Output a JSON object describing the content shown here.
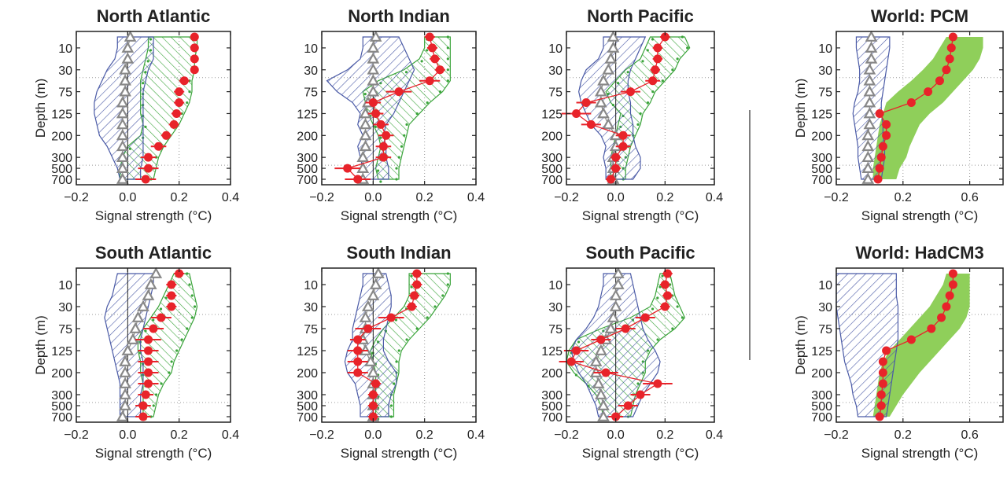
{
  "figure": {
    "divider_color": "#555555",
    "colors": {
      "control": "#4a5aa6",
      "model": "#3aa43a",
      "model_fill": "#8fcf5a",
      "obs": "#e8232a",
      "triangle": "#888888"
    }
  },
  "chart_data": [
    {
      "id": "north-atlantic",
      "type": "profile",
      "title": "North Atlantic",
      "xlabel": "Signal strength (°C)",
      "ylabel": "Depth (m)",
      "xlim": [
        -0.2,
        0.4
      ],
      "xticks": [
        "−0.2",
        "0.0",
        "0.2",
        "0.4"
      ],
      "xtick_values": [
        -0.2,
        0.0,
        0.2,
        0.4
      ],
      "yticks": [
        "10",
        "30",
        "75",
        "125",
        "200",
        "300",
        "500",
        "700"
      ],
      "control_band": {
        "left": [
          -0.04,
          -0.04,
          -0.05,
          -0.08,
          -0.1,
          -0.12,
          -0.13,
          -0.13,
          -0.12,
          -0.11,
          -0.08,
          -0.06,
          -0.04,
          -0.03
        ],
        "right": [
          0.1,
          0.1,
          0.1,
          0.08,
          0.07,
          0.06,
          0.06,
          0.06,
          0.06,
          0.06,
          0.06,
          0.06,
          0.05,
          0.05
        ]
      },
      "model_band": {
        "style": "hatch",
        "left": [
          0.08,
          0.08,
          0.07,
          0.06,
          0.05,
          0.05,
          0.05,
          0.05,
          0.06,
          0.05,
          0.0,
          -0.02,
          -0.03,
          -0.03
        ],
        "right": [
          0.27,
          0.27,
          0.26,
          0.26,
          0.25,
          0.25,
          0.24,
          0.22,
          0.2,
          0.17,
          0.14,
          0.12,
          0.11,
          0.1
        ]
      },
      "triangles": [
        0.01,
        0.0,
        0.0,
        -0.01,
        -0.01,
        -0.01,
        -0.02,
        -0.02,
        -0.02,
        -0.02,
        -0.02,
        -0.02,
        -0.02,
        -0.02
      ],
      "obs": {
        "values": [
          0.26,
          0.26,
          0.26,
          0.26,
          0.22,
          0.2,
          0.2,
          0.19,
          0.18,
          0.15,
          0.12,
          0.08,
          0.08,
          0.07
        ],
        "err": [
          0.01,
          0.01,
          0.01,
          0.01,
          0.02,
          0.02,
          0.02,
          0.02,
          0.02,
          0.02,
          0.03,
          0.03,
          0.04,
          0.04
        ],
        "connected": false
      }
    },
    {
      "id": "north-indian",
      "type": "profile",
      "title": "North Indian",
      "xlabel": "Signal strength (°C)",
      "ylabel": "",
      "xlim": [
        -0.2,
        0.4
      ],
      "xticks": [
        "−0.2",
        "0.0",
        "0.2",
        "0.4"
      ],
      "xtick_values": [
        -0.2,
        0.0,
        0.2,
        0.4
      ],
      "yticks": [
        "10",
        "30",
        "75",
        "125",
        "200",
        "300",
        "500",
        "700"
      ],
      "control_band": {
        "left": [
          -0.04,
          -0.04,
          -0.05,
          -0.1,
          -0.18,
          -0.14,
          -0.08,
          -0.05,
          -0.06,
          -0.04,
          -0.06,
          -0.05,
          -0.04,
          -0.04
        ],
        "right": [
          0.1,
          0.12,
          0.14,
          0.16,
          0.14,
          0.12,
          0.1,
          0.08,
          0.05,
          0.04,
          0.05,
          0.05,
          0.06,
          0.06
        ]
      },
      "model_band": {
        "style": "hatch",
        "left": [
          0.2,
          0.2,
          0.18,
          0.12,
          0.02,
          -0.04,
          -0.03,
          -0.02,
          0.0,
          0.02,
          0.03,
          0.02,
          0.01,
          0.02
        ],
        "right": [
          0.3,
          0.3,
          0.3,
          0.3,
          0.3,
          0.27,
          0.22,
          0.18,
          0.14,
          0.13,
          0.12,
          0.11,
          0.1,
          0.1
        ]
      },
      "triangles": [
        0.01,
        0.0,
        0.0,
        0.0,
        0.0,
        0.0,
        -0.02,
        -0.03,
        -0.03,
        -0.03,
        -0.03,
        -0.04,
        -0.04,
        -0.04
      ],
      "obs": {
        "values": [
          0.22,
          0.23,
          0.24,
          0.26,
          0.22,
          0.1,
          0.0,
          0.01,
          0.03,
          0.05,
          0.04,
          0.04,
          -0.1,
          -0.06
        ],
        "err": [
          0.02,
          0.02,
          0.02,
          0.02,
          0.04,
          0.05,
          0.03,
          0.03,
          0.03,
          0.03,
          0.03,
          0.03,
          0.05,
          0.05
        ],
        "connected": true
      }
    },
    {
      "id": "north-pacific",
      "type": "profile",
      "title": "North Pacific",
      "xlabel": "Signal strength (°C)",
      "ylabel": "",
      "xlim": [
        -0.2,
        0.4
      ],
      "xticks": [
        "−0.2",
        "0.0",
        "0.2",
        "0.4"
      ],
      "xtick_values": [
        -0.2,
        0.0,
        0.2,
        0.4
      ],
      "yticks": [
        "10",
        "30",
        "75",
        "125",
        "200",
        "300",
        "500",
        "700"
      ],
      "control_band": {
        "left": [
          -0.05,
          -0.05,
          -0.07,
          -0.12,
          -0.14,
          -0.15,
          -0.14,
          -0.12,
          -0.1,
          -0.06,
          -0.04,
          -0.05,
          -0.04,
          -0.04
        ],
        "right": [
          0.12,
          0.1,
          0.08,
          0.06,
          0.05,
          0.05,
          0.06,
          0.06,
          0.07,
          0.07,
          0.08,
          0.1,
          0.1,
          0.07
        ]
      },
      "model_band": {
        "style": "hatch",
        "left": [
          0.14,
          0.12,
          0.1,
          0.04,
          0.0,
          -0.04,
          -0.02,
          0.02,
          0.01,
          0.0,
          -0.01,
          -0.02,
          -0.02,
          -0.02
        ],
        "right": [
          0.28,
          0.3,
          0.26,
          0.24,
          0.2,
          0.16,
          0.14,
          0.11,
          0.1,
          0.08,
          0.06,
          0.05,
          0.04,
          0.04
        ]
      },
      "triangles": [
        -0.01,
        -0.01,
        -0.02,
        -0.03,
        -0.05,
        -0.06,
        -0.06,
        -0.05,
        -0.03,
        0.0,
        0.0,
        -0.01,
        -0.01,
        -0.01
      ],
      "obs": {
        "values": [
          0.2,
          0.17,
          0.17,
          0.16,
          0.15,
          0.06,
          -0.12,
          -0.16,
          -0.1,
          0.03,
          0.03,
          0.0,
          0.0,
          -0.02
        ],
        "err": [
          0.02,
          0.02,
          0.02,
          0.02,
          0.03,
          0.04,
          0.04,
          0.06,
          0.04,
          0.03,
          0.03,
          0.02,
          0.02,
          0.02
        ],
        "connected": true
      }
    },
    {
      "id": "world-pcm",
      "type": "profile",
      "title": "World: PCM",
      "xlabel": "Signal strength (°C)",
      "ylabel": "Depth (m)",
      "xlim": [
        -0.2,
        0.8
      ],
      "xticks": [
        "−0.2",
        "0.2",
        "0.6"
      ],
      "xtick_values": [
        -0.2,
        0.2,
        0.6
      ],
      "yticks": [
        "10",
        "30",
        "75",
        "125",
        "200",
        "300",
        "500",
        "700"
      ],
      "control_band": {
        "left": [
          -0.08,
          -0.08,
          -0.07,
          -0.06,
          -0.06,
          -0.07,
          -0.09,
          -0.1,
          -0.09,
          -0.08,
          -0.07,
          -0.07,
          -0.06,
          -0.05
        ],
        "right": [
          0.12,
          0.12,
          0.11,
          0.1,
          0.09,
          0.08,
          0.07,
          0.07,
          0.08,
          0.08,
          0.09,
          0.09,
          0.08,
          0.07
        ]
      },
      "model_band": {
        "style": "solid",
        "left": [
          0.46,
          0.42,
          0.38,
          0.32,
          0.25,
          0.17,
          0.1,
          0.08,
          0.06,
          0.05,
          0.04,
          0.03,
          0.02,
          0.02
        ],
        "right": [
          0.68,
          0.68,
          0.66,
          0.62,
          0.56,
          0.5,
          0.44,
          0.36,
          0.3,
          0.27,
          0.24,
          0.22,
          0.18,
          0.16
        ]
      },
      "triangles": [
        0.01,
        0.01,
        0.01,
        0.0,
        0.0,
        0.0,
        0.0,
        0.0,
        0.0,
        -0.01,
        -0.01,
        -0.01,
        -0.01,
        -0.01
      ],
      "obs": {
        "values": [
          0.5,
          0.49,
          0.48,
          0.46,
          0.42,
          0.35,
          0.25,
          0.06,
          0.1,
          0.1,
          0.08,
          0.07,
          0.06,
          0.05
        ],
        "err": [
          0,
          0,
          0,
          0,
          0,
          0,
          0,
          0,
          0,
          0,
          0,
          0,
          0,
          0
        ],
        "connected": true
      }
    },
    {
      "id": "south-atlantic",
      "type": "profile",
      "title": "South Atlantic",
      "xlabel": "Signal strength (°C)",
      "ylabel": "Depth (m)",
      "xlim": [
        -0.2,
        0.4
      ],
      "xticks": [
        "−0.2",
        "0.0",
        "0.2",
        "0.4"
      ],
      "xtick_values": [
        -0.2,
        0.0,
        0.2,
        0.4
      ],
      "yticks": [
        "10",
        "30",
        "75",
        "125",
        "200",
        "300",
        "500",
        "700"
      ],
      "control_band": {
        "left": [
          -0.04,
          -0.05,
          -0.06,
          -0.08,
          -0.09,
          -0.08,
          -0.07,
          -0.06,
          -0.05,
          -0.04,
          -0.03,
          -0.03,
          -0.03,
          -0.03
        ],
        "right": [
          0.1,
          0.1,
          0.09,
          0.08,
          0.07,
          0.06,
          0.05,
          0.05,
          0.06,
          0.06,
          0.06,
          0.05,
          0.05,
          0.05
        ]
      },
      "model_band": {
        "style": "hatch",
        "left": [
          0.18,
          0.16,
          0.14,
          0.12,
          0.09,
          0.06,
          0.04,
          0.04,
          0.05,
          0.05,
          0.06,
          0.06,
          0.06,
          0.06
        ],
        "right": [
          0.24,
          0.25,
          0.26,
          0.27,
          0.26,
          0.24,
          0.22,
          0.2,
          0.18,
          0.17,
          0.14,
          0.12,
          0.11,
          0.1
        ]
      },
      "triangles": [
        0.11,
        0.09,
        0.08,
        0.06,
        0.04,
        0.03,
        0.02,
        0.0,
        -0.01,
        -0.01,
        -0.01,
        -0.01,
        -0.01,
        -0.02
      ],
      "obs": {
        "values": [
          0.2,
          0.17,
          0.17,
          0.17,
          0.13,
          0.1,
          0.08,
          0.08,
          0.08,
          0.08,
          0.08,
          0.07,
          0.06,
          0.06
        ],
        "err": [
          0.02,
          0.02,
          0.02,
          0.02,
          0.04,
          0.04,
          0.05,
          0.04,
          0.04,
          0.04,
          0.04,
          0.03,
          0.03,
          0.03
        ],
        "connected": false
      }
    },
    {
      "id": "south-indian",
      "type": "profile",
      "title": "South Indian",
      "xlabel": "Signal strength (°C)",
      "ylabel": "",
      "xlim": [
        -0.2,
        0.4
      ],
      "xticks": [
        "−0.2",
        "0.0",
        "0.2",
        "0.4"
      ],
      "xtick_values": [
        -0.2,
        0.0,
        0.2,
        0.4
      ],
      "yticks": [
        "10",
        "30",
        "75",
        "125",
        "200",
        "300",
        "500",
        "700"
      ],
      "control_band": {
        "left": [
          -0.04,
          -0.04,
          -0.05,
          -0.06,
          -0.07,
          -0.08,
          -0.08,
          -0.1,
          -0.11,
          -0.1,
          -0.07,
          -0.06,
          -0.05,
          -0.05
        ],
        "right": [
          0.05,
          0.06,
          0.07,
          0.07,
          0.06,
          0.05,
          0.04,
          0.04,
          0.06,
          0.09,
          0.09,
          0.07,
          0.06,
          0.06
        ]
      },
      "model_band": {
        "style": "hatch",
        "left": [
          0.14,
          0.14,
          0.14,
          0.12,
          0.08,
          0.04,
          0.01,
          -0.01,
          0.0,
          0.01,
          0.01,
          0.01,
          0.01,
          0.01
        ],
        "right": [
          0.3,
          0.3,
          0.28,
          0.25,
          0.22,
          0.18,
          0.14,
          0.11,
          0.1,
          0.1,
          0.09,
          0.08,
          0.08,
          0.08
        ]
      },
      "triangles": [
        0.02,
        0.01,
        0.0,
        -0.02,
        -0.03,
        -0.03,
        -0.04,
        -0.03,
        -0.01,
        0.0,
        0.0,
        0.0,
        0.0,
        0.0
      ],
      "obs": {
        "values": [
          0.17,
          0.17,
          0.16,
          0.15,
          0.07,
          -0.02,
          -0.06,
          -0.06,
          -0.06,
          -0.06,
          0.01,
          0.0,
          0.0,
          0.0
        ],
        "err": [
          0.02,
          0.02,
          0.02,
          0.02,
          0.05,
          0.05,
          0.03,
          0.04,
          0.04,
          0.04,
          0.02,
          0.02,
          0.02,
          0.02
        ],
        "connected": true
      }
    },
    {
      "id": "south-pacific",
      "type": "profile",
      "title": "South Pacific",
      "xlabel": "Signal strength (°C)",
      "ylabel": "",
      "xlim": [
        -0.2,
        0.4
      ],
      "xticks": [
        "−0.2",
        "0.0",
        "0.2",
        "0.4"
      ],
      "xtick_values": [
        -0.2,
        0.0,
        0.2,
        0.4
      ],
      "yticks": [
        "10",
        "30",
        "75",
        "125",
        "200",
        "300",
        "500",
        "700"
      ],
      "control_band": {
        "left": [
          -0.05,
          -0.05,
          -0.06,
          -0.07,
          -0.09,
          -0.12,
          -0.16,
          -0.18,
          -0.17,
          -0.15,
          -0.12,
          -0.1,
          -0.08,
          -0.07
        ],
        "right": [
          0.06,
          0.07,
          0.08,
          0.09,
          0.1,
          0.11,
          0.13,
          0.16,
          0.18,
          0.17,
          0.14,
          0.11,
          0.09,
          0.07
        ]
      },
      "model_band": {
        "style": "hatch",
        "left": [
          0.18,
          0.17,
          0.16,
          0.14,
          0.06,
          -0.06,
          -0.16,
          -0.19,
          -0.2,
          -0.17,
          -0.12,
          -0.08,
          -0.06,
          -0.05
        ],
        "right": [
          0.22,
          0.23,
          0.24,
          0.26,
          0.28,
          0.24,
          0.18,
          0.14,
          0.12,
          0.12,
          0.1,
          0.08,
          0.07,
          0.06
        ]
      },
      "triangles": [
        0.01,
        0.01,
        0.0,
        0.0,
        -0.01,
        -0.02,
        -0.04,
        -0.06,
        -0.08,
        -0.08,
        -0.07,
        -0.06,
        -0.05,
        -0.05
      ],
      "obs": {
        "values": [
          0.21,
          0.2,
          0.21,
          0.2,
          0.12,
          0.04,
          -0.06,
          -0.16,
          -0.18,
          -0.04,
          0.17,
          0.1,
          0.05,
          0.0
        ],
        "err": [
          0.02,
          0.02,
          0.02,
          0.02,
          0.04,
          0.04,
          0.04,
          0.05,
          0.05,
          0.05,
          0.06,
          0.04,
          0.04,
          0.03
        ],
        "connected": true
      }
    },
    {
      "id": "world-hadcm3",
      "type": "profile",
      "title": "World: HadCM3",
      "xlabel": "Signal strength (°C)",
      "ylabel": "Depth (m)",
      "xlim": [
        -0.2,
        0.8
      ],
      "xticks": [
        "−0.2",
        "0.2",
        "0.6"
      ],
      "xtick_values": [
        -0.2,
        0.2,
        0.6
      ],
      "yticks": [
        "10",
        "30",
        "75",
        "125",
        "200",
        "300",
        "500",
        "700"
      ],
      "control_band": {
        "left": [
          -0.2,
          -0.2,
          -0.2,
          -0.2,
          -0.19,
          -0.18,
          -0.17,
          -0.16,
          -0.15,
          -0.13,
          -0.11,
          -0.1,
          -0.08,
          -0.07
        ],
        "right": [
          0.16,
          0.16,
          0.16,
          0.17,
          0.17,
          0.17,
          0.17,
          0.16,
          0.15,
          0.14,
          0.13,
          0.12,
          0.11,
          0.1
        ]
      },
      "model_band": {
        "style": "solid",
        "left": [
          0.46,
          0.44,
          0.4,
          0.36,
          0.3,
          0.24,
          0.18,
          0.12,
          0.08,
          0.06,
          0.05,
          0.04,
          0.03,
          0.02
        ],
        "right": [
          0.6,
          0.6,
          0.6,
          0.6,
          0.58,
          0.54,
          0.48,
          0.42,
          0.36,
          0.3,
          0.25,
          0.2,
          0.16,
          0.12
        ]
      },
      "triangles": [],
      "obs": {
        "values": [
          0.5,
          0.5,
          0.48,
          0.46,
          0.43,
          0.37,
          0.25,
          0.1,
          0.08,
          0.08,
          0.08,
          0.07,
          0.07,
          0.06
        ],
        "err": [
          0,
          0,
          0,
          0,
          0,
          0,
          0,
          0,
          0,
          0,
          0,
          0,
          0,
          0
        ],
        "connected": true
      }
    }
  ]
}
